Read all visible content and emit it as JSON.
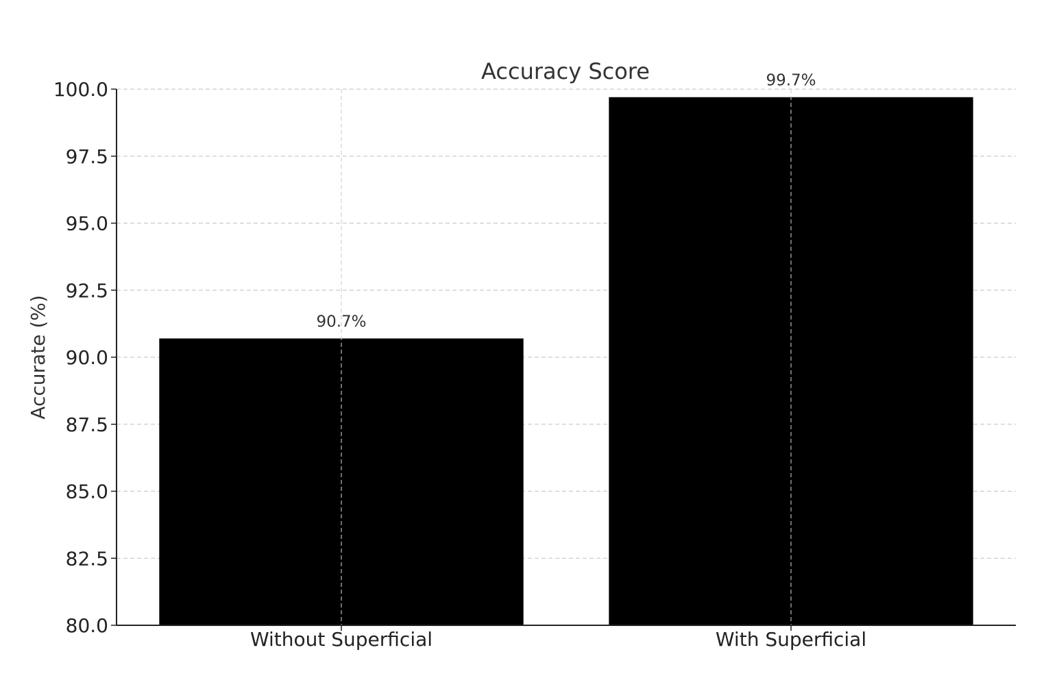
{
  "chart_data": {
    "type": "bar",
    "title": "Accuracy Score",
    "xlabel": "",
    "ylabel": "Accurate (%)",
    "categories": [
      "Without Superficial",
      "With Superficial"
    ],
    "values": [
      90.7,
      99.7
    ],
    "data_labels": [
      "90.7%",
      "99.7%"
    ],
    "ylim": [
      80.0,
      100.0
    ],
    "yticks": [
      80.0,
      82.5,
      85.0,
      87.5,
      90.0,
      92.5,
      95.0,
      97.5,
      100.0
    ],
    "ytick_labels": [
      "80.0",
      "82.5",
      "85.0",
      "87.5",
      "90.0",
      "92.5",
      "95.0",
      "97.5",
      "100.0"
    ],
    "grid": true,
    "bar_color": "#000000",
    "grid_color": "#cccccc",
    "axis_color": "#222222"
  }
}
